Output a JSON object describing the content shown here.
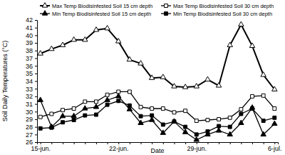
{
  "chart_data": {
    "type": "line",
    "x_label": "Date",
    "y_label": "Soil Daily Temperatures (°C)",
    "categories": [
      "15-jun.",
      null,
      null,
      null,
      null,
      null,
      null,
      "22-jun.",
      null,
      null,
      null,
      null,
      null,
      null,
      "29-jun.",
      null,
      null,
      null,
      null,
      null,
      null,
      "6-jul."
    ],
    "ylim": [
      26,
      42
    ],
    "yticks": [
      26,
      27,
      28,
      29,
      30,
      31,
      32,
      33,
      34,
      35,
      36,
      37,
      38,
      39,
      40,
      41,
      42
    ],
    "grid": false,
    "legend": "top",
    "series": [
      {
        "name": "Max Temp Biodisinfested Soil 15 cm depth",
        "color": "#000000",
        "marker": "triangle-open",
        "values": [
          37.6,
          38.2,
          38.7,
          39.4,
          39.4,
          40.7,
          40.9,
          39.2,
          36.8,
          36.3,
          34.4,
          34.5,
          33.3,
          33.2,
          33.3,
          34.2,
          33.4,
          38.7,
          41.4,
          38.6,
          34.8,
          32.9
        ]
      },
      {
        "name": "Max Temp Biodisinfested Soil 30 cm depth",
        "color": "#000000",
        "marker": "square-open",
        "values": [
          29.3,
          29.7,
          30.2,
          30.4,
          31.3,
          31.3,
          32.2,
          32.6,
          32.6,
          30.6,
          30.4,
          30.4,
          29.9,
          30.1,
          28.8,
          28.9,
          29.0,
          29.2,
          30.3,
          32.0,
          32.1,
          30.4
        ]
      },
      {
        "name": "Min Temp Biodisinfested Soil 15 cm depth",
        "color": "#000000",
        "marker": "triangle",
        "values": [
          31.5,
          28.0,
          29.4,
          29.4,
          30.4,
          30.6,
          31.5,
          32.0,
          30.3,
          28.5,
          28.9,
          27.2,
          28.7,
          27.3,
          26.3,
          27.0,
          27.5,
          27.0,
          28.5,
          30.5,
          27.0,
          28.4
        ]
      },
      {
        "name": "Min Temp Biodisinfested Soil 30 cm depth",
        "color": "#000000",
        "marker": "square",
        "values": [
          27.8,
          27.9,
          28.6,
          28.9,
          29.5,
          29.6,
          30.9,
          31.4,
          30.8,
          29.4,
          29.5,
          28.3,
          28.7,
          28.0,
          27.0,
          27.4,
          28.1,
          28.0,
          29.7,
          30.4,
          28.8,
          29.2
        ]
      }
    ]
  }
}
